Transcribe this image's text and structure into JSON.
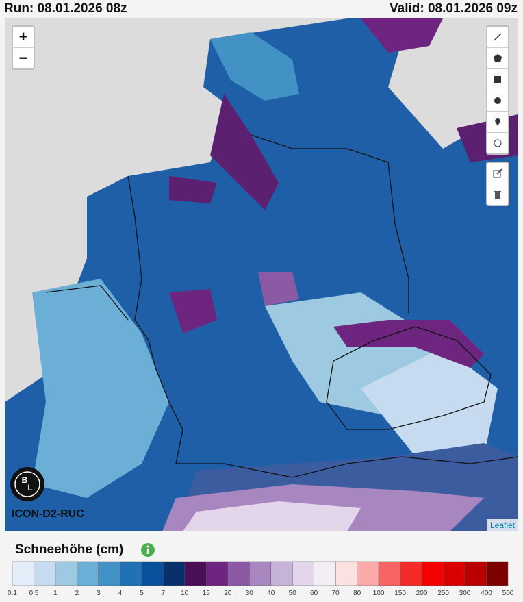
{
  "header": {
    "run": "Run: 08.01.2026 08z",
    "valid": "Valid: 08.01.2026 09z"
  },
  "map": {
    "zoom_in": "+",
    "zoom_out": "−",
    "logo": [
      "B",
      "L"
    ],
    "model": "ICON-D2-RUC",
    "attribution": "Leaflet"
  },
  "legend": {
    "title": "Schneehöhe (cm)",
    "ticks": [
      0.1,
      0.5,
      1,
      2,
      3,
      4,
      5,
      7,
      10,
      15,
      20,
      30,
      40,
      50,
      60,
      70,
      80,
      100,
      150,
      200,
      250,
      300,
      400,
      500
    ],
    "colors": [
      "#e4eef9",
      "#c6dbef",
      "#9ecae1",
      "#6baed6",
      "#4292c6",
      "#2171b5",
      "#08519c",
      "#08306b",
      "#4a0f55",
      "#6d2580",
      "#8c5aa5",
      "#a887c0",
      "#c7b2d9",
      "#e3d6ea",
      "#f3eef5",
      "#fde0e0",
      "#fca9a9",
      "#f86464",
      "#f72a2a",
      "#f50000",
      "#d80000",
      "#b80000",
      "#7d0000"
    ]
  }
}
